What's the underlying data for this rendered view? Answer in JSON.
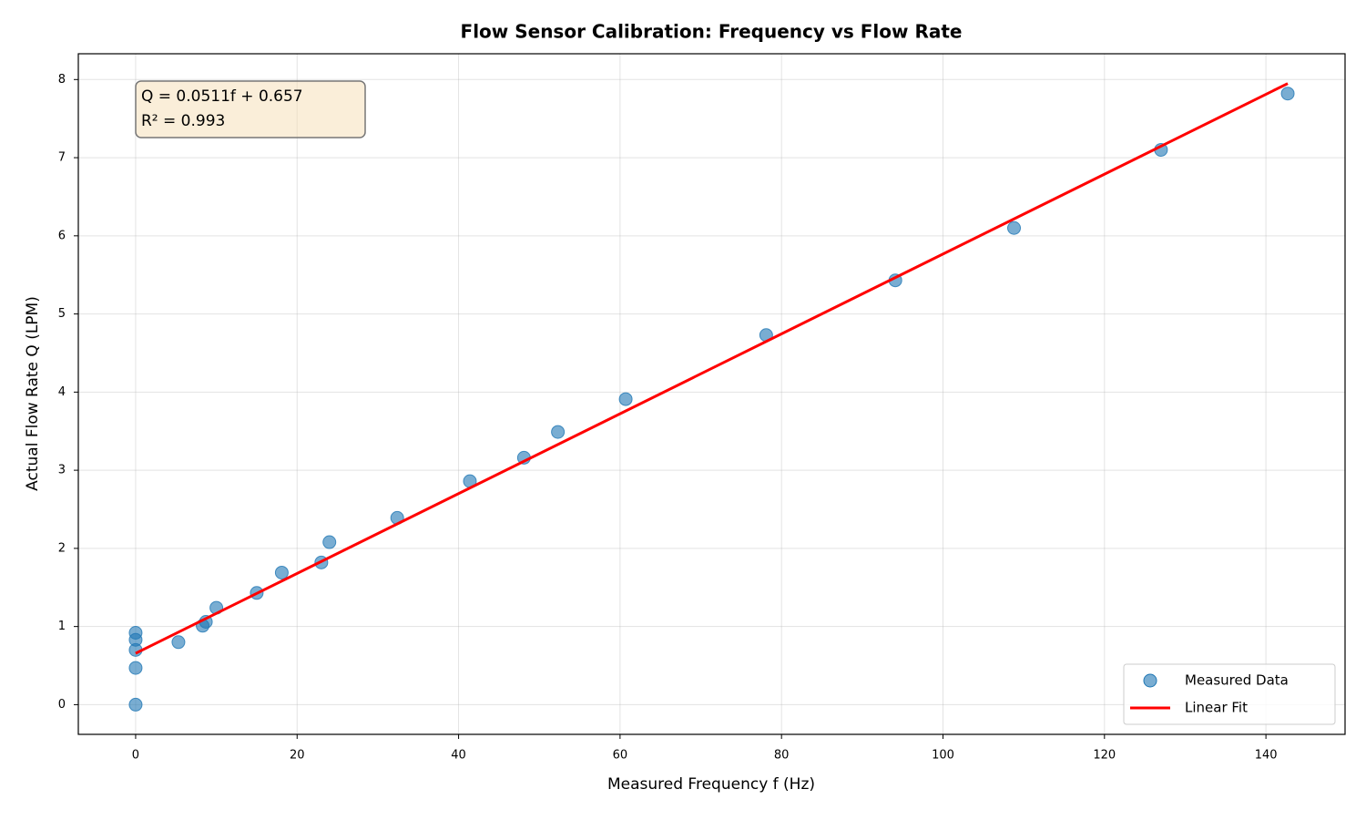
{
  "chart_data": {
    "type": "scatter",
    "title": "Flow Sensor Calibration: Frequency vs Flow Rate",
    "x_label": "Measured Frequency f (Hz)",
    "y_label": "Actual Flow Rate Q (LPM)",
    "annotations": [
      "Q = 0.0511f + 0.657",
      "R² = 0.993"
    ],
    "xlim": [
      -7.1,
      149.8
    ],
    "ylim": [
      -0.38,
      8.33
    ],
    "xticks": [
      0,
      20,
      40,
      60,
      80,
      100,
      120,
      140
    ],
    "yticks": [
      0,
      1,
      2,
      3,
      4,
      5,
      6,
      7,
      8
    ],
    "grid": true,
    "legend": "lower right",
    "series": [
      {
        "name": "Measured Data",
        "type": "scatter",
        "color": "#1f77b4",
        "x": [
          0,
          0,
          0,
          0,
          0,
          5.3,
          8.3,
          8.7,
          10.0,
          15.0,
          18.1,
          23.0,
          24.0,
          32.4,
          41.4,
          48.1,
          52.3,
          60.7,
          78.1,
          94.1,
          108.8,
          127.0,
          142.7
        ],
        "values": [
          0,
          0.47,
          0.7,
          0.83,
          0.92,
          0.8,
          1.01,
          1.06,
          1.24,
          1.43,
          1.69,
          1.82,
          2.08,
          2.39,
          2.86,
          3.16,
          3.49,
          3.91,
          4.73,
          5.43,
          6.1,
          7.1,
          7.82
        ]
      },
      {
        "name": "Linear Fit",
        "type": "line",
        "color": "#ff0000",
        "x": [
          0,
          142.7
        ],
        "values": [
          0.657,
          7.949
        ]
      }
    ]
  }
}
